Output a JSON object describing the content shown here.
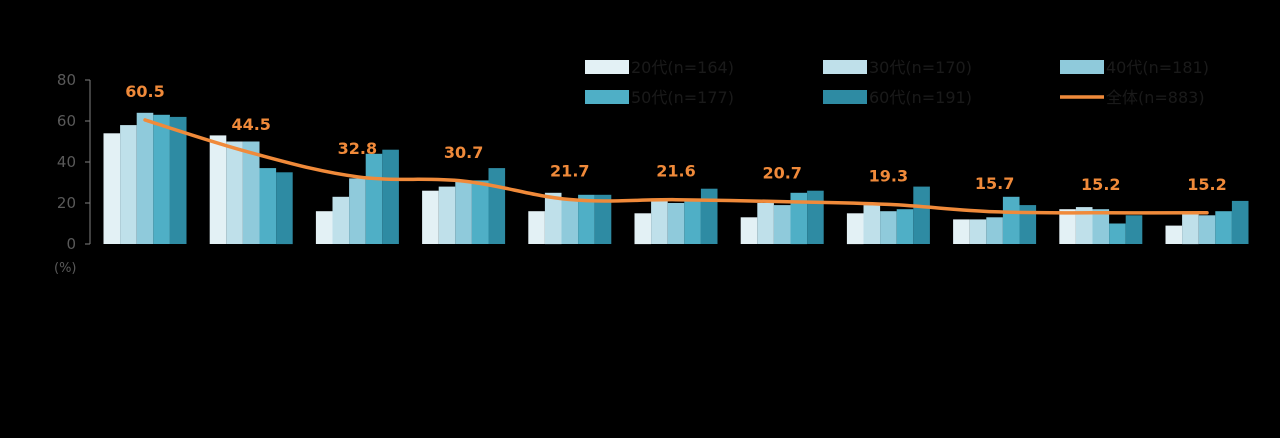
{
  "chart_data": {
    "type": "bar",
    "y_unit_label": "(%)",
    "ylim": [
      0,
      80
    ],
    "yticks": [
      0,
      20,
      40,
      60,
      80
    ],
    "grid": false,
    "legend_position": "top-right",
    "categories": [
      "",
      "",
      "",
      "",
      "",
      "",
      "",
      "",
      "",
      "",
      ""
    ],
    "series": [
      {
        "name": "20代(n=164)",
        "color": "#E3F1F5",
        "values": [
          54,
          53,
          16,
          26,
          16,
          15,
          13,
          15,
          12,
          17,
          9
        ]
      },
      {
        "name": "30代(n=170)",
        "color": "#BFE0EA",
        "values": [
          58,
          50,
          23,
          28,
          25,
          21,
          20,
          19,
          12,
          18,
          15
        ]
      },
      {
        "name": "40代(n=181)",
        "color": "#8FCADB",
        "values": [
          64,
          50,
          32,
          31,
          22,
          20,
          19,
          16,
          13,
          17,
          14
        ]
      },
      {
        "name": "50代(n=177)",
        "color": "#4FAFC6",
        "values": [
          63,
          37,
          44,
          31,
          24,
          21,
          25,
          17,
          23,
          10,
          16
        ]
      },
      {
        "name": "60代(n=191)",
        "color": "#2E8BA3",
        "values": [
          62,
          35,
          46,
          37,
          24,
          27,
          26,
          28,
          19,
          14,
          21
        ]
      }
    ],
    "line_series": {
      "name": "全体(n=883)",
      "color": "#F08A3A",
      "values": [
        60.5,
        44.5,
        32.8,
        30.7,
        21.7,
        21.6,
        20.7,
        19.3,
        15.7,
        15.2,
        15.2
      ],
      "labels": [
        "60.5",
        "44.5",
        "32.8",
        "30.7",
        "21.7",
        "21.6",
        "20.7",
        "19.3",
        "15.7",
        "15.2",
        "15.2"
      ]
    }
  }
}
